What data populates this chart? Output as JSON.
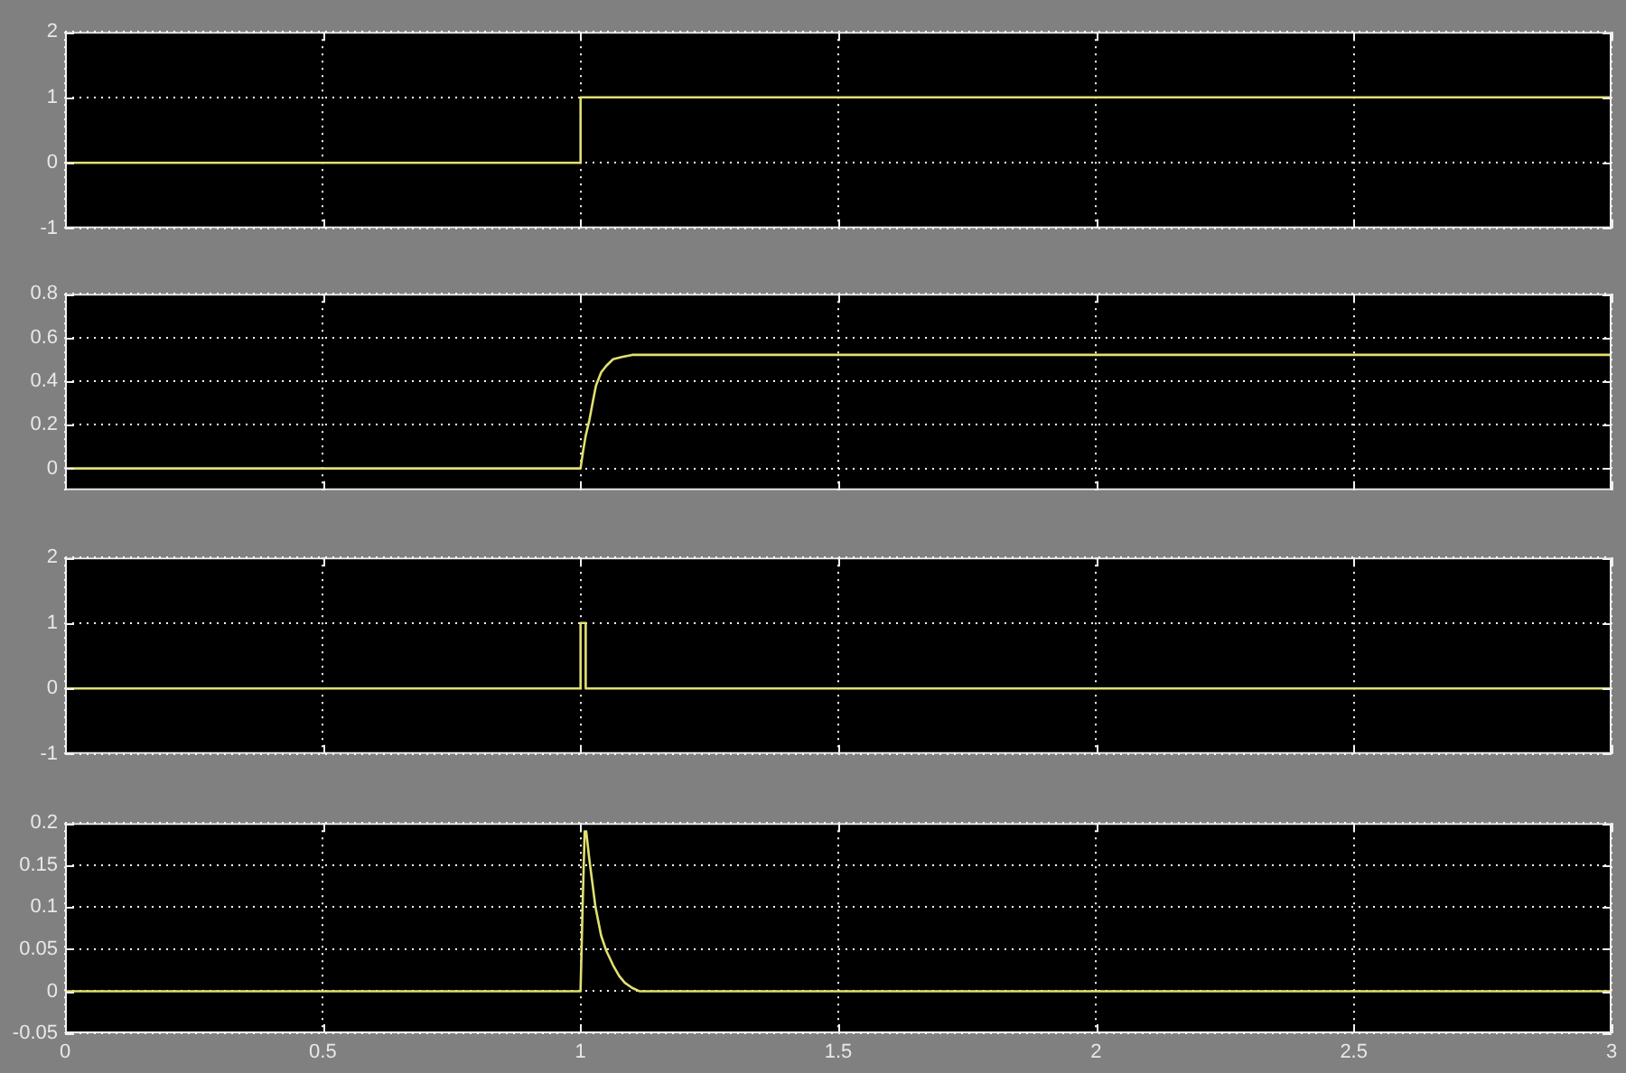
{
  "chart_data": [
    {
      "type": "line",
      "x": [
        0,
        1,
        1,
        3
      ],
      "values": [
        0,
        0,
        1,
        1
      ],
      "color": "#e0e070",
      "xlim": [
        0,
        3
      ],
      "xticks": [
        0,
        0.5,
        1,
        1.5,
        2,
        2.5,
        3
      ],
      "ylim": [
        -1,
        2
      ],
      "yticks": [
        -1,
        0,
        1,
        2
      ],
      "grid": true,
      "tick_labels": "y"
    },
    {
      "type": "line",
      "x": [
        0,
        1,
        1.005,
        1.01,
        1.017,
        1.025,
        1.03,
        1.04,
        1.05,
        1.063,
        1.08,
        1.1,
        1.12,
        3
      ],
      "values": [
        0,
        0,
        0.08,
        0.15,
        0.22,
        0.32,
        0.38,
        0.44,
        0.47,
        0.5,
        0.51,
        0.52,
        0.52,
        0.52
      ],
      "color": "#e0e070",
      "xlim": [
        0,
        3
      ],
      "xticks": [
        0,
        0.5,
        1,
        1.5,
        2,
        2.5,
        3
      ],
      "ylim": [
        -0.1,
        0.8
      ],
      "yticks": [
        0,
        0.2,
        0.4,
        0.6,
        0.8
      ],
      "grid": true,
      "tick_labels": "y"
    },
    {
      "type": "line",
      "x": [
        0,
        1,
        1,
        1.01,
        1.01,
        3
      ],
      "values": [
        0,
        0,
        1,
        1,
        0,
        0
      ],
      "color": "#e0e070",
      "xlim": [
        0,
        3
      ],
      "xticks": [
        0,
        0.5,
        1,
        1.5,
        2,
        2.5,
        3
      ],
      "ylim": [
        -1,
        2
      ],
      "yticks": [
        -1,
        0,
        1,
        2
      ],
      "grid": true,
      "tick_labels": "y"
    },
    {
      "type": "line",
      "x": [
        0,
        1,
        1.004,
        1.008,
        1.011,
        1.017,
        1.029,
        1.04,
        1.05,
        1.063,
        1.075,
        1.086,
        1.1,
        1.114,
        3
      ],
      "values": [
        0,
        0,
        0.1,
        0.19,
        0.19,
        0.157,
        0.1,
        0.066,
        0.048,
        0.031,
        0.018,
        0.01,
        0.004,
        0,
        0
      ],
      "color": "#e0e070",
      "xlim": [
        0,
        3
      ],
      "xticks": [
        0,
        0.5,
        1,
        1.5,
        2,
        2.5,
        3
      ],
      "ylim": [
        -0.05,
        0.2
      ],
      "yticks": [
        -0.05,
        0,
        0.05,
        0.1,
        0.15,
        0.2
      ],
      "grid": true
    }
  ]
}
